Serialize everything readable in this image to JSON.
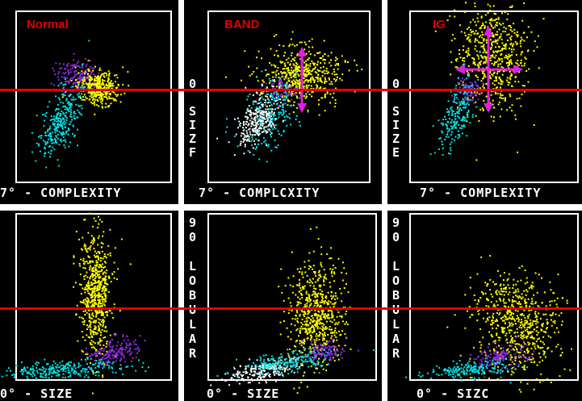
{
  "panels": [
    {
      "label": "Normal",
      "xaxis": "7° - COMPLEXITY",
      "yaxis": ""
    },
    {
      "label": "BAND",
      "xaxis": "7° - COMPLCXITY",
      "yaxis": "0 SIZF"
    },
    {
      "label": "IG",
      "xaxis": "7° - COMPLEXITY",
      "yaxis": "0 SIZE"
    },
    {
      "label": "",
      "xaxis": "0° - SIZE",
      "yaxis": ""
    },
    {
      "label": "",
      "xaxis": "0° - SIZE",
      "yaxis": "90 LOBULAR"
    },
    {
      "label": "",
      "xaxis": "0° - SIZC",
      "yaxis": "90 LOBULAR"
    }
  ],
  "colors": {
    "background": "#000000",
    "frame": "#ffffff",
    "reference_line": "#e60000",
    "label_text": "#e00000",
    "yellow_population": "#ffff00",
    "purple_population": "#8a2be2",
    "cyan_population": "#00e5e5",
    "white_population": "#ffffff",
    "arrow": "#e020e0"
  }
}
